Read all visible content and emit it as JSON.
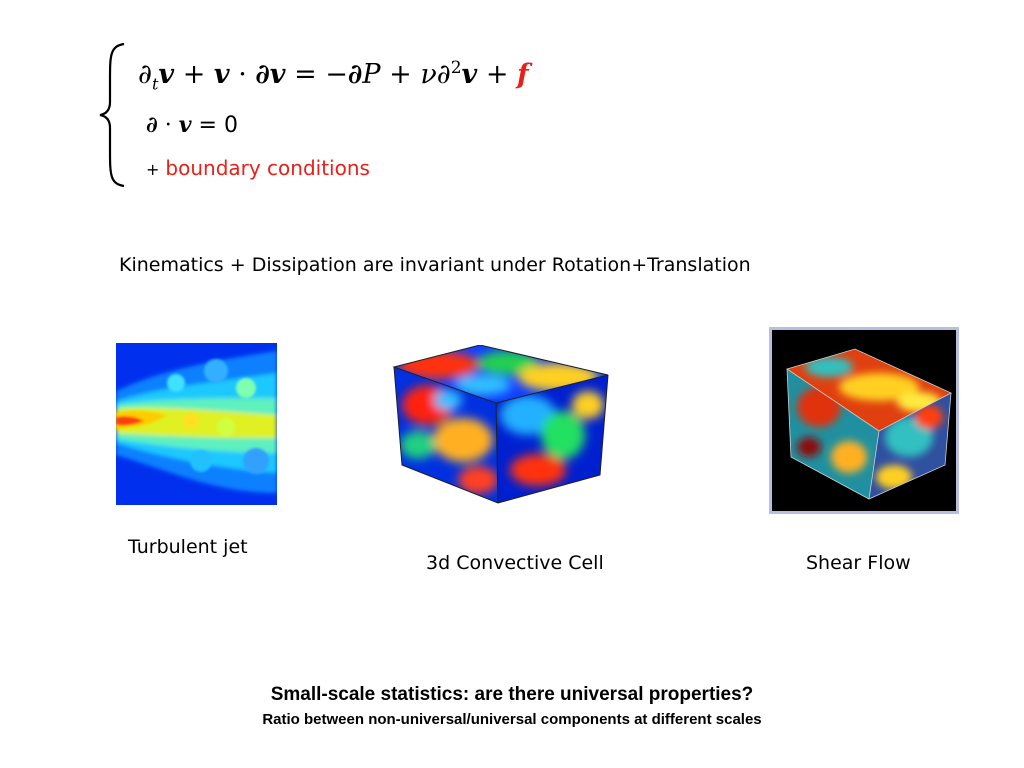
{
  "equations": {
    "navier_stokes": {
      "lhs_a": "∂",
      "lhs_a_sub": "t",
      "lhs_v1": "v",
      "plus1": " + ",
      "v2": "v",
      "dot1": " · ",
      "del1": "∂",
      "v3": "v",
      "equals": " = −",
      "del2": "∂",
      "P": "P",
      "plus2": " + ",
      "nu": "ν",
      "del3": "∂",
      "sq": "2",
      "v4": "v",
      "plus3": " + ",
      "f": "f"
    },
    "incompressibility": {
      "del": "∂",
      "dot": " · ",
      "v": "v",
      "rhs": " = 0"
    },
    "boundary": {
      "plus": "+",
      "text": "boundary conditions"
    }
  },
  "statement": "Kinematics + Dissipation are  invariant under Rotation+Translation",
  "figures": [
    {
      "caption": "Turbulent jet"
    },
    {
      "caption": "3d Convective Cell"
    },
    {
      "caption": "Shear Flow"
    }
  ],
  "bottom": {
    "question": "Small-scale statistics: are there universal properties?",
    "subtitle": "Ratio between non-universal/universal components at different scales"
  },
  "colors": {
    "accent": "#e8201a"
  }
}
